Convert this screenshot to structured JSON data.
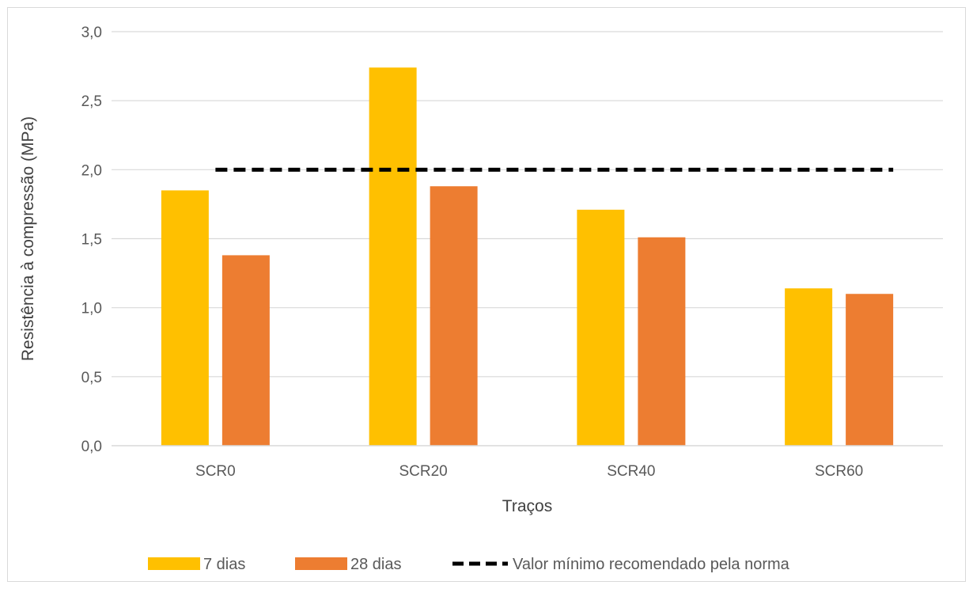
{
  "chart_data": {
    "type": "bar",
    "title": "",
    "xlabel": "Traços",
    "ylabel": "Resistência à compressão (MPa)",
    "ylim": [
      0,
      3.0
    ],
    "y_ticks": [
      "0,0",
      "0,5",
      "1,0",
      "1,5",
      "2,0",
      "2,5",
      "3,0"
    ],
    "y_tick_values": [
      0,
      0.5,
      1.0,
      1.5,
      2.0,
      2.5,
      3.0
    ],
    "categories": [
      "SCR0",
      "SCR20",
      "SCR40",
      "SCR60"
    ],
    "series": [
      {
        "name": "7 dias",
        "values": [
          1.85,
          2.74,
          1.71,
          1.14
        ],
        "color": "#FFC000"
      },
      {
        "name": "28 dias",
        "values": [
          1.38,
          1.88,
          1.51,
          1.1
        ],
        "color": "#ED7D31"
      }
    ],
    "reference_line": {
      "name": "Valor mínimo recomendado pela norma",
      "value": 2.0,
      "color": "#000000",
      "style": "dashed"
    },
    "grid": true,
    "legend_position": "bottom"
  }
}
